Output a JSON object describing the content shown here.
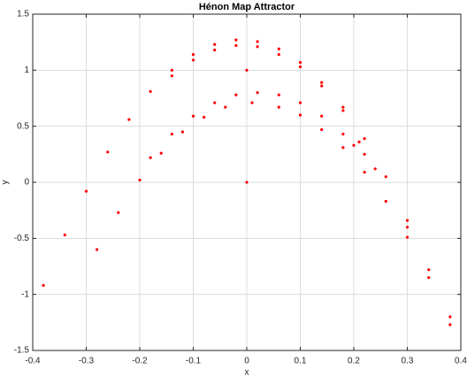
{
  "chart_data": {
    "type": "scatter",
    "title": "Hénon Map Attractor",
    "x_label": "x",
    "y_label": "y",
    "xlim": [
      -0.4,
      0.4
    ],
    "ylim": [
      -1.5,
      1.5
    ],
    "xticks": [
      -0.4,
      -0.3,
      -0.2,
      -0.1,
      0,
      0.1,
      0.2,
      0.3,
      0.4
    ],
    "yticks": [
      -1.5,
      -1,
      -0.5,
      0,
      0.5,
      1,
      1.5
    ],
    "grid": true,
    "series": [
      {
        "color": "#ff0000",
        "x": [
          0,
          0,
          0.3,
          -0.38,
          -0.34,
          -0.3,
          -0.26,
          -0.22,
          -0.18,
          -0.14,
          -0.1,
          -0.06,
          -0.02,
          0.02,
          0.06,
          0.1,
          0.14,
          0.18,
          0.22,
          0.26,
          0.3,
          0.34,
          0.38,
          -0.14,
          -0.1,
          -0.06,
          -0.02,
          0.02,
          0.06,
          0.1,
          0.14,
          0.18,
          0.21,
          -0.18,
          -0.14,
          -0.1,
          -0.06,
          -0.02,
          0.02,
          0.06,
          0.1,
          0.14,
          0.18,
          0.2,
          -0.28,
          -0.24,
          -0.2,
          -0.16,
          -0.12,
          -0.08,
          -0.04,
          0.01,
          0.06,
          0.1,
          0.14,
          0.18,
          0.22,
          0.26,
          0.3,
          0.34,
          0.38,
          0.22,
          0.24
        ],
        "y": [
          0,
          1,
          -0.4,
          -0.92,
          -0.47,
          -0.08,
          0.27,
          0.56,
          0.81,
          1.0,
          1.14,
          1.23,
          1.27,
          1.255,
          1.19,
          1.07,
          0.89,
          0.67,
          0.39,
          0.05,
          -0.34,
          -0.78,
          -1.27,
          0.95,
          1.09,
          1.18,
          1.22,
          1.21,
          1.14,
          1.03,
          0.86,
          0.64,
          0.36,
          0.22,
          0.43,
          0.59,
          0.71,
          0.78,
          0.8,
          0.78,
          0.71,
          0.59,
          0.43,
          0.33,
          -0.6,
          -0.27,
          0.02,
          0.26,
          0.45,
          0.58,
          0.67,
          0.71,
          0.67,
          0.6,
          0.47,
          0.31,
          0.09,
          -0.17,
          -0.49,
          -0.85,
          -1.2,
          0.25,
          0.12
        ]
      }
    ]
  }
}
